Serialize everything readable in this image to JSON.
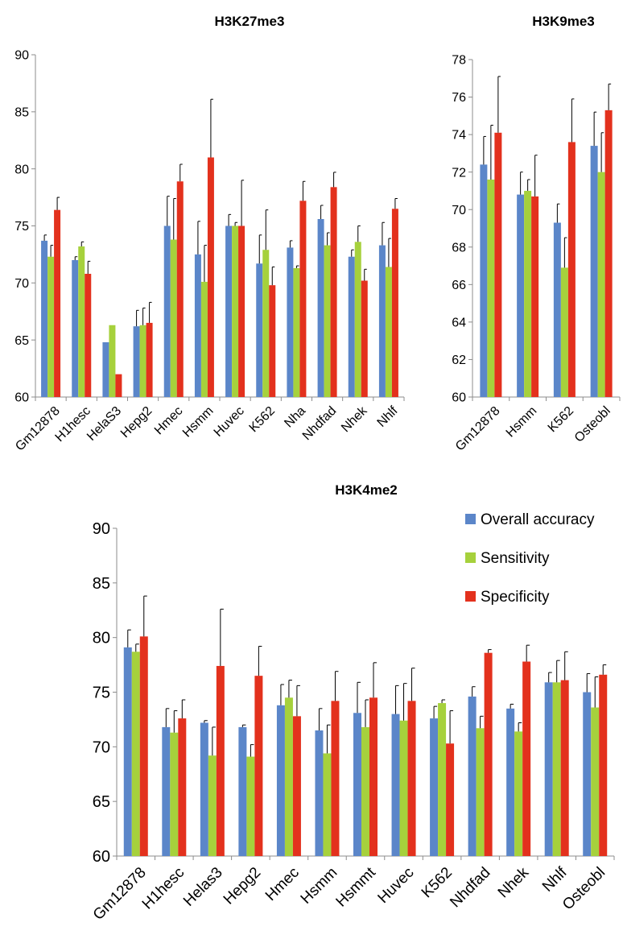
{
  "colors": {
    "overall": "#5b86c9",
    "sensitivity": "#a6d13c",
    "specificity": "#e3311d"
  },
  "legend": [
    {
      "name": "Overall accuracy",
      "color": "#5b86c9"
    },
    {
      "name": "Sensitivity",
      "color": "#a6d13c"
    },
    {
      "name": "Specificity",
      "color": "#e3311d"
    }
  ],
  "chart_data": [
    {
      "type": "bar",
      "title": "H3K27me3",
      "categories": [
        "Gm12878",
        "H1hesc",
        "HelaS3",
        "Hepg2",
        "Hmec",
        "Hsmm",
        "Huvec",
        "K562",
        "Nha",
        "Nhdfad",
        "Nhek",
        "Nhlf"
      ],
      "ylim": [
        60,
        90
      ],
      "yticks": [
        60,
        65,
        70,
        75,
        80,
        85,
        90
      ],
      "series": [
        {
          "name": "Overall accuracy",
          "values": [
            73.7,
            72.0,
            64.8,
            66.2,
            75.0,
            72.5,
            75.0,
            71.7,
            73.1,
            75.6,
            72.3,
            73.3
          ],
          "errors": [
            0.5,
            0.3,
            0,
            1.4,
            2.6,
            2.9,
            1.0,
            2.5,
            0.6,
            1.2,
            0.6,
            2.0
          ]
        },
        {
          "name": "Sensitivity",
          "values": [
            72.3,
            73.2,
            66.3,
            66.3,
            73.8,
            70.1,
            75.0,
            72.9,
            71.3,
            73.3,
            73.6,
            71.4
          ],
          "errors": [
            1.0,
            0.4,
            0,
            1.5,
            3.6,
            3.2,
            0.3,
            3.5,
            0.2,
            1.1,
            1.4,
            2.5
          ]
        },
        {
          "name": "Specificity",
          "values": [
            76.4,
            70.8,
            62.0,
            66.5,
            78.9,
            81.0,
            75.0,
            69.8,
            77.2,
            78.4,
            70.2,
            76.5
          ],
          "errors": [
            1.1,
            1.1,
            0,
            1.8,
            1.5,
            5.1,
            4.0,
            1.6,
            1.7,
            1.3,
            1.0,
            0.9
          ]
        }
      ]
    },
    {
      "type": "bar",
      "title": "H3K9me3",
      "categories": [
        "Gm12878",
        "Hsmm",
        "K562",
        "Osteobl"
      ],
      "ylim": [
        60,
        78
      ],
      "yticks": [
        60,
        62,
        64,
        66,
        68,
        70,
        72,
        74,
        76,
        78
      ],
      "series": [
        {
          "name": "Overall accuracy",
          "values": [
            72.4,
            70.8,
            69.3,
            73.4
          ],
          "errors": [
            1.5,
            1.2,
            1.0,
            1.8
          ]
        },
        {
          "name": "Sensitivity",
          "values": [
            71.6,
            71.0,
            66.9,
            72.0
          ],
          "errors": [
            2.9,
            0.6,
            1.6,
            2.1
          ]
        },
        {
          "name": "Specificity",
          "values": [
            74.1,
            70.7,
            73.6,
            75.3
          ],
          "errors": [
            3.0,
            2.2,
            2.3,
            1.4
          ]
        }
      ]
    },
    {
      "type": "bar",
      "title": "H3K4me2",
      "categories": [
        "Gm12878",
        "H1hesc",
        "Helas3",
        "Hepg2",
        "Hmec",
        "Hsmm",
        "Hsmmt",
        "Huvec",
        "K562",
        "Nhdfad",
        "Nhek",
        "Nhlf",
        "Osteobl"
      ],
      "ylim": [
        60,
        90
      ],
      "yticks": [
        60,
        65,
        70,
        75,
        80,
        85,
        90
      ],
      "legend_position": "top-right",
      "series": [
        {
          "name": "Overall accuracy",
          "values": [
            79.1,
            71.8,
            72.2,
            71.8,
            73.8,
            71.5,
            73.1,
            73.0,
            72.6,
            74.6,
            73.5,
            75.9,
            75.0
          ],
          "errors": [
            1.6,
            1.7,
            0.2,
            0.2,
            1.9,
            2.0,
            2.8,
            2.6,
            1.1,
            0.9,
            0.4,
            0.9,
            1.7
          ]
        },
        {
          "name": "Sensitivity",
          "values": [
            78.7,
            71.3,
            69.2,
            69.1,
            74.5,
            69.4,
            71.8,
            72.4,
            74.0,
            71.7,
            71.4,
            75.9,
            73.6
          ],
          "errors": [
            0.7,
            2.0,
            2.6,
            1.1,
            1.6,
            2.6,
            2.5,
            3.4,
            0.3,
            1.1,
            0.8,
            2.0,
            2.8
          ]
        },
        {
          "name": "Specificity",
          "values": [
            80.1,
            72.6,
            77.4,
            76.5,
            72.8,
            74.2,
            74.5,
            74.2,
            70.3,
            78.6,
            77.8,
            76.1,
            76.6
          ],
          "errors": [
            3.7,
            1.7,
            5.2,
            2.7,
            2.8,
            2.7,
            3.2,
            3.0,
            3.0,
            0.3,
            1.5,
            2.6,
            0.9
          ]
        }
      ]
    }
  ]
}
